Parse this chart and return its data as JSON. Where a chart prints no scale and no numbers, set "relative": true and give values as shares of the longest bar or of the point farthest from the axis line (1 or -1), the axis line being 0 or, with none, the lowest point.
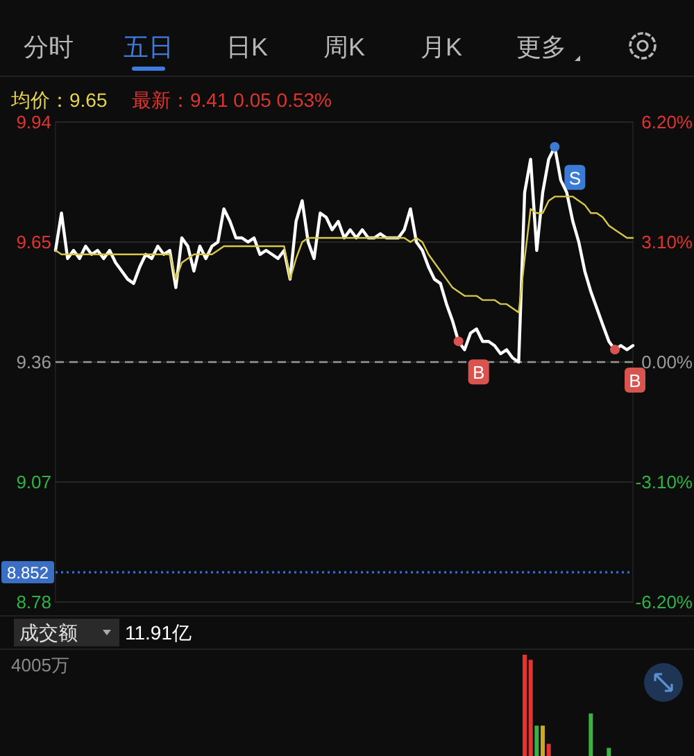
{
  "chart_data": [
    {
      "type": "line",
      "annotations": [
        "分时",
        "五日",
        "日K",
        "周K",
        "月K",
        "更多",
        "均价：9.65",
        "最新：9.41 0.05 0.53%"
      ],
      "categories": [
        null,
        null,
        null,
        null,
        null,
        null,
        null,
        null,
        null,
        null,
        null,
        null,
        null,
        null,
        null,
        null,
        null,
        null,
        null,
        null,
        null,
        null,
        null,
        null,
        null,
        null,
        null,
        null,
        null,
        null,
        null,
        null,
        null,
        null,
        null,
        null,
        null,
        null,
        null,
        null,
        null,
        null,
        null,
        null,
        null,
        null,
        null,
        null,
        null,
        null,
        null,
        null,
        null,
        null,
        null,
        null,
        null,
        null,
        null,
        null,
        null,
        null,
        null,
        null,
        null,
        null,
        null,
        null,
        null,
        null,
        null,
        null,
        null,
        null,
        null,
        null,
        null,
        null,
        null,
        null,
        null,
        null,
        null,
        null,
        null,
        null,
        null,
        null,
        null,
        null,
        null,
        null,
        null,
        null,
        null,
        null,
        null
      ],
      "series": [
        {
          "type": "line",
          "color": "#ffffff",
          "values": [
            9.63,
            9.72,
            9.61,
            9.63,
            9.61,
            9.64,
            9.62,
            9.63,
            9.61,
            9.63,
            9.6,
            9.58,
            9.56,
            9.55,
            9.59,
            9.62,
            9.61,
            9.64,
            9.62,
            9.63,
            9.54,
            9.66,
            9.64,
            9.58,
            9.64,
            9.61,
            9.64,
            9.65,
            9.73,
            9.7,
            9.66,
            9.66,
            9.65,
            9.66,
            9.62,
            9.63,
            9.62,
            9.61,
            9.63,
            9.56,
            9.7,
            9.75,
            9.65,
            9.61,
            9.72,
            9.71,
            9.68,
            9.7,
            9.66,
            9.68,
            9.66,
            9.68,
            9.66,
            9.66,
            9.67,
            9.66,
            9.66,
            9.66,
            9.68,
            9.73,
            9.65,
            9.63,
            9.59,
            9.56,
            9.55,
            9.5,
            9.46,
            9.41,
            9.39,
            9.43,
            9.44,
            9.41,
            9.41,
            9.4,
            9.38,
            9.39,
            9.37,
            9.36,
            9.77,
            9.85,
            9.63,
            9.77,
            9.85,
            9.88,
            9.8,
            9.77,
            9.7,
            9.65,
            9.58,
            9.53,
            9.49,
            9.45,
            9.41,
            9.39,
            9.4,
            9.39,
            9.4
          ]
        },
        {
          "type": "line",
          "color": "#d8c848",
          "values": [
            9.63,
            9.62,
            9.62,
            9.62,
            9.62,
            9.62,
            9.62,
            9.62,
            9.62,
            9.62,
            9.62,
            9.62,
            9.62,
            9.62,
            9.62,
            9.62,
            9.62,
            9.62,
            9.62,
            9.62,
            9.56,
            9.6,
            9.61,
            9.62,
            9.62,
            9.62,
            9.62,
            9.63,
            9.64,
            9.64,
            9.64,
            9.64,
            9.64,
            9.64,
            9.64,
            9.64,
            9.64,
            9.64,
            9.64,
            9.56,
            9.61,
            9.65,
            9.66,
            9.66,
            9.66,
            9.66,
            9.66,
            9.66,
            9.66,
            9.66,
            9.66,
            9.66,
            9.66,
            9.66,
            9.66,
            9.66,
            9.66,
            9.66,
            9.66,
            9.65,
            9.66,
            9.65,
            9.62,
            9.6,
            9.58,
            9.56,
            9.54,
            9.53,
            9.52,
            9.52,
            9.52,
            9.51,
            9.51,
            9.51,
            9.5,
            9.5,
            9.49,
            9.48,
            9.61,
            9.73,
            9.72,
            9.72,
            9.75,
            9.76,
            9.76,
            9.76,
            9.76,
            9.75,
            9.74,
            9.72,
            9.72,
            9.71,
            9.69,
            9.68,
            9.67,
            9.66,
            9.66
          ]
        },
        {
          "type": "scatter",
          "values": [
            null,
            null,
            null,
            null,
            null,
            null,
            null,
            null,
            null,
            null,
            null,
            null,
            null,
            null,
            null,
            null,
            null,
            null,
            null,
            null,
            null,
            null,
            null,
            null,
            null,
            null,
            null,
            null,
            null,
            null,
            null,
            null,
            null,
            null,
            null,
            null,
            null,
            null,
            null,
            null,
            null,
            null,
            null,
            null,
            null,
            null,
            null,
            null,
            null,
            null,
            null,
            null,
            null,
            null,
            null,
            null,
            null,
            null,
            null,
            null,
            null,
            null,
            null,
            null,
            null,
            null,
            null,
            9.41,
            null,
            null,
            null,
            null,
            null,
            null,
            null,
            null,
            null,
            null,
            null,
            null,
            null,
            null,
            null,
            9.88,
            null,
            null,
            null,
            null,
            null,
            null,
            null,
            null,
            null,
            9.39,
            null,
            null,
            null
          ],
          "colors": [
            null,
            null,
            null,
            null,
            null,
            null,
            null,
            null,
            null,
            null,
            null,
            null,
            null,
            null,
            null,
            null,
            null,
            null,
            null,
            null,
            null,
            null,
            null,
            null,
            null,
            null,
            null,
            null,
            null,
            null,
            null,
            null,
            null,
            null,
            null,
            null,
            null,
            null,
            null,
            null,
            null,
            null,
            null,
            null,
            null,
            null,
            null,
            null,
            null,
            null,
            null,
            null,
            null,
            null,
            null,
            null,
            null,
            null,
            null,
            null,
            null,
            null,
            null,
            null,
            null,
            null,
            null,
            "#d9534f",
            null,
            null,
            null,
            null,
            null,
            null,
            null,
            null,
            null,
            null,
            null,
            null,
            null,
            null,
            null,
            "#3a7bd5",
            null,
            null,
            null,
            null,
            null,
            null,
            null,
            null,
            null,
            "#d9534f",
            null,
            null,
            null
          ],
          "value_labels": [
            null,
            null,
            null,
            null,
            null,
            null,
            null,
            null,
            null,
            null,
            null,
            null,
            null,
            null,
            null,
            null,
            null,
            null,
            null,
            null,
            null,
            null,
            null,
            null,
            null,
            null,
            null,
            null,
            null,
            null,
            null,
            null,
            null,
            null,
            null,
            null,
            null,
            null,
            null,
            null,
            null,
            null,
            null,
            null,
            null,
            null,
            null,
            null,
            null,
            null,
            null,
            null,
            null,
            null,
            null,
            null,
            null,
            null,
            null,
            null,
            null,
            null,
            null,
            null,
            null,
            null,
            null,
            "B",
            null,
            null,
            null,
            null,
            null,
            null,
            null,
            null,
            null,
            null,
            null,
            null,
            null,
            null,
            null,
            "S",
            null,
            null,
            null,
            null,
            null,
            null,
            null,
            null,
            null,
            "B",
            null,
            null,
            null
          ]
        }
      ],
      "ylim": [
        8.78,
        9.94
      ],
      "yticks": [
        9.94,
        9.65,
        9.36,
        9.07,
        8.78
      ],
      "y2lim": [
        -6.2,
        6.2
      ],
      "y2ticks": [
        {
          "value": 6.2,
          "label": "6.20%"
        },
        {
          "value": 3.1,
          "label": "3.10%"
        },
        {
          "value": 0,
          "label": "0.00%"
        },
        {
          "value": -3.1,
          "label": "-3.10%"
        },
        {
          "value": -6.2,
          "label": "-6.20%"
        }
      ],
      "ref_lines": [
        {
          "axis": "y",
          "value": 9.36,
          "color": "#9a9a9a",
          "line_style": "dashed"
        },
        {
          "axis": "y",
          "value": 8.852,
          "label": "8.852",
          "color": "#3a6fc4",
          "line_style": "dotted"
        }
      ],
      "grid": "y"
    },
    {
      "type": "bar",
      "relative": true,
      "annotations": [
        "成交额",
        "11.91亿",
        "4005万"
      ],
      "categories": [
        null,
        null,
        null,
        null,
        null,
        null,
        null,
        null,
        null,
        null,
        null,
        null,
        null,
        null,
        null,
        null,
        null,
        null,
        null,
        null,
        null,
        null,
        null,
        null,
        null,
        null,
        null,
        null,
        null,
        null,
        null,
        null,
        null,
        null,
        null,
        null,
        null,
        null,
        null,
        null,
        null,
        null,
        null,
        null,
        null,
        null,
        null,
        null,
        null,
        null,
        null,
        null,
        null,
        null,
        null,
        null,
        null,
        null,
        null,
        null,
        null,
        null,
        null,
        null,
        null,
        null,
        null,
        null,
        null,
        null,
        null,
        null,
        null,
        null,
        null,
        null,
        null,
        null,
        null,
        null,
        null,
        null,
        null,
        null,
        null,
        null,
        null,
        null,
        null,
        null,
        null,
        null,
        null,
        null,
        null,
        null,
        null
      ],
      "values": [
        null,
        null,
        null,
        null,
        null,
        null,
        null,
        null,
        null,
        null,
        null,
        null,
        null,
        null,
        null,
        null,
        null,
        null,
        null,
        null,
        null,
        null,
        null,
        null,
        null,
        null,
        null,
        null,
        null,
        null,
        null,
        null,
        null,
        null,
        null,
        null,
        null,
        null,
        null,
        null,
        null,
        null,
        null,
        null,
        null,
        null,
        null,
        null,
        null,
        null,
        null,
        null,
        null,
        null,
        null,
        null,
        null,
        null,
        null,
        null,
        null,
        null,
        null,
        null,
        null,
        null,
        null,
        null,
        null,
        null,
        null,
        null,
        null,
        null,
        null,
        null,
        null,
        null,
        1,
        0.95,
        0.3,
        0.3,
        0.12,
        null,
        null,
        null,
        null,
        null,
        null,
        0.42,
        null,
        null,
        0.08,
        null,
        null,
        null,
        null
      ],
      "colors": [
        null,
        null,
        null,
        null,
        null,
        null,
        null,
        null,
        null,
        null,
        null,
        null,
        null,
        null,
        null,
        null,
        null,
        null,
        null,
        null,
        null,
        null,
        null,
        null,
        null,
        null,
        null,
        null,
        null,
        null,
        null,
        null,
        null,
        null,
        null,
        null,
        null,
        null,
        null,
        null,
        null,
        null,
        null,
        null,
        null,
        null,
        null,
        null,
        null,
        null,
        null,
        null,
        null,
        null,
        null,
        null,
        null,
        null,
        null,
        null,
        null,
        null,
        null,
        null,
        null,
        null,
        null,
        null,
        null,
        null,
        null,
        null,
        null,
        null,
        null,
        null,
        null,
        null,
        "#e8322e",
        "#e8322e",
        "#3cb043",
        "#c8a82a",
        "#e8322e",
        null,
        null,
        null,
        null,
        null,
        null,
        "#3cb043",
        null,
        null,
        "#3cb043",
        null,
        null,
        null,
        null
      ]
    }
  ]
}
